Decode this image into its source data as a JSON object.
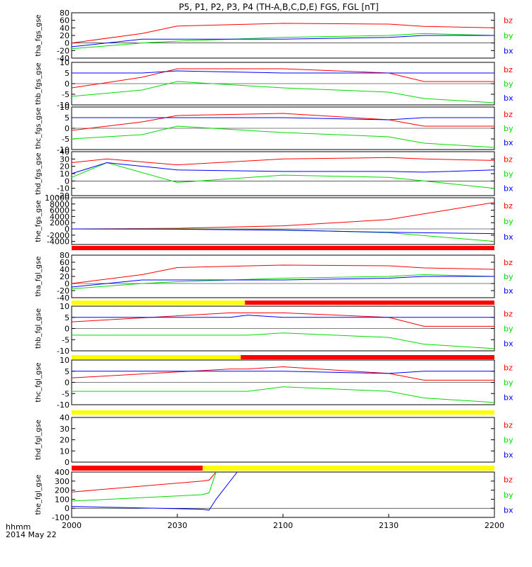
{
  "title": "P5, P1, P2, P3, P4 (TH-A,B,C,D,E) FGS, FGL [nT]",
  "footer": {
    "time_label": "hhmm",
    "date_label": "2014 May 22"
  },
  "x_ticks": [
    "2000",
    "2030",
    "2100",
    "2130",
    "2200"
  ],
  "colors": {
    "bx": "#0000ff",
    "by": "#00dd00",
    "bz": "#ff0000",
    "bar_red": "#ff0000",
    "bar_yellow": "#ffff00",
    "axis": "#000000"
  },
  "chart_data": [
    {
      "type": "line",
      "ylabel": "tha_fgs_gse",
      "ylim": [
        -40,
        80
      ],
      "yticks": [
        "-40",
        "-20",
        "0",
        "20",
        "40",
        "60",
        "80"
      ],
      "legend": [
        "bz",
        "by",
        "bx"
      ],
      "x": [
        "2000",
        "2020",
        "2030",
        "2100",
        "2130",
        "2140",
        "2200"
      ],
      "series": [
        {
          "name": "bz",
          "values": [
            0,
            25,
            45,
            52,
            50,
            44,
            40
          ]
        },
        {
          "name": "by",
          "values": [
            -15,
            0,
            5,
            15,
            20,
            25,
            20
          ]
        },
        {
          "name": "bx",
          "values": [
            -10,
            10,
            10,
            10,
            15,
            20,
            20
          ]
        }
      ]
    },
    {
      "type": "line",
      "ylabel": "thb_fgs_gse",
      "ylim": [
        -10,
        10
      ],
      "yticks": [
        "-10",
        "-5",
        "0",
        "5",
        "10"
      ],
      "legend": [
        "bz",
        "by",
        "bx"
      ],
      "x": [
        "2000",
        "2020",
        "2030",
        "2100",
        "2130",
        "2140",
        "2200"
      ],
      "series": [
        {
          "name": "bz",
          "values": [
            -2,
            3,
            7,
            7,
            5,
            1,
            1
          ]
        },
        {
          "name": "by",
          "values": [
            -6,
            -3,
            1,
            -2,
            -4,
            -7,
            -9
          ]
        },
        {
          "name": "bx",
          "values": [
            5,
            5,
            6,
            5,
            5,
            5,
            5
          ]
        }
      ]
    },
    {
      "type": "line",
      "ylabel": "thc_fgs_gse",
      "ylim": [
        -10,
        10
      ],
      "yticks": [
        "-10",
        "-5",
        "0",
        "5",
        "10"
      ],
      "legend": [
        "bz",
        "by",
        "bx"
      ],
      "x": [
        "2000",
        "2020",
        "2030",
        "2100",
        "2130",
        "2140",
        "2200"
      ],
      "series": [
        {
          "name": "bz",
          "values": [
            -1,
            3,
            6,
            7,
            4,
            1,
            1
          ]
        },
        {
          "name": "by",
          "values": [
            -5,
            -3,
            1,
            -2,
            -4,
            -7,
            -9
          ]
        },
        {
          "name": "bx",
          "values": [
            5,
            5,
            5,
            5,
            4,
            5,
            5
          ]
        }
      ]
    },
    {
      "type": "line",
      "ylabel": "thd_fgs_gse",
      "ylim": [
        -20,
        40
      ],
      "yticks": [
        "-20",
        "-10",
        "0",
        "10",
        "20",
        "30",
        "40"
      ],
      "legend": [
        "bz",
        "by",
        "bx"
      ],
      "x": [
        "2000",
        "2010",
        "2030",
        "2100",
        "2130",
        "2140",
        "2200"
      ],
      "series": [
        {
          "name": "bz",
          "values": [
            25,
            30,
            22,
            30,
            32,
            30,
            28
          ]
        },
        {
          "name": "by",
          "values": [
            5,
            25,
            -2,
            8,
            5,
            0,
            -10
          ]
        },
        {
          "name": "bx",
          "values": [
            10,
            25,
            15,
            13,
            13,
            12,
            15
          ]
        }
      ]
    },
    {
      "type": "line",
      "ylabel": "the_fgs_gse",
      "ylim": [
        -5000,
        10000
      ],
      "yticks": [
        "-4000",
        "-2000",
        "0",
        "2000",
        "4000",
        "6000",
        "8000",
        "10000"
      ],
      "legend": [
        "bz",
        "by",
        "bx"
      ],
      "x": [
        "2000",
        "2030",
        "2100",
        "2130",
        "2200"
      ],
      "series": [
        {
          "name": "bz",
          "values": [
            0,
            200,
            1000,
            3000,
            8500
          ]
        },
        {
          "name": "by",
          "values": [
            0,
            0,
            -300,
            -1200,
            -4000
          ]
        },
        {
          "name": "bx",
          "values": [
            0,
            -100,
            -400,
            -1100,
            -1500
          ]
        }
      ]
    },
    {
      "type": "line",
      "ylabel": "tha_fgl_gse",
      "ylim": [
        -40,
        80
      ],
      "yticks": [
        "-40",
        "-20",
        "0",
        "20",
        "40",
        "60",
        "80"
      ],
      "legend": [
        "bz",
        "by",
        "bx"
      ],
      "x": [
        "2000",
        "2020",
        "2030",
        "2100",
        "2130",
        "2140",
        "2200"
      ],
      "series": [
        {
          "name": "bz",
          "values": [
            0,
            25,
            45,
            52,
            50,
            44,
            40
          ]
        },
        {
          "name": "by",
          "values": [
            -15,
            0,
            5,
            15,
            20,
            25,
            20
          ]
        },
        {
          "name": "bx",
          "values": [
            -10,
            10,
            10,
            10,
            15,
            20,
            20
          ]
        }
      ]
    },
    {
      "type": "line",
      "ylabel": "thb_fgl_gse",
      "ylim": [
        -10,
        10
      ],
      "yticks": [
        "-10",
        "-5",
        "0",
        "5",
        "10"
      ],
      "legend": [
        "bz",
        "by",
        "bx"
      ],
      "x": [
        "2000",
        "2045",
        "2050",
        "2100",
        "2130",
        "2140",
        "2200"
      ],
      "series": [
        {
          "name": "bz",
          "values": [
            3,
            7,
            7,
            7,
            5,
            1,
            1
          ]
        },
        {
          "name": "by",
          "values": [
            -3,
            -3,
            -3,
            -2,
            -4,
            -7,
            -9
          ]
        },
        {
          "name": "bx",
          "values": [
            5,
            5,
            6,
            5,
            5,
            5,
            5
          ]
        }
      ]
    },
    {
      "type": "line",
      "ylabel": "thc_fgl_gse",
      "ylim": [
        -10,
        10
      ],
      "yticks": [
        "-10",
        "-5",
        "0",
        "5",
        "10"
      ],
      "legend": [
        "bz",
        "by",
        "bx"
      ],
      "x": [
        "2000",
        "2045",
        "2050",
        "2100",
        "2130",
        "2140",
        "2200"
      ],
      "series": [
        {
          "name": "bz",
          "values": [
            2,
            6,
            6,
            7,
            4,
            1,
            1
          ]
        },
        {
          "name": "by",
          "values": [
            -4,
            -4,
            -4,
            -2,
            -4,
            -7,
            -9
          ]
        },
        {
          "name": "bx",
          "values": [
            5,
            5,
            5,
            5,
            4,
            5,
            5
          ]
        }
      ]
    },
    {
      "type": "line",
      "ylabel": "thd_fgl_gse",
      "ylim": [
        0,
        40
      ],
      "yticks": [
        "0",
        "10",
        "20",
        "30",
        "40"
      ],
      "legend": [
        "bz",
        "by",
        "bx"
      ],
      "x": [],
      "series": []
    },
    {
      "type": "line",
      "ylabel": "the_fgl_gse",
      "ylim": [
        -100,
        400
      ],
      "yticks": [
        "-100",
        "0",
        "100",
        "200",
        "300",
        "400"
      ],
      "legend": [
        "bz",
        "by",
        "bx"
      ],
      "x": [
        "2000",
        "2037",
        "2039",
        "2041",
        "2047"
      ],
      "series": [
        {
          "name": "bz",
          "values": [
            180,
            300,
            310,
            400,
            null
          ]
        },
        {
          "name": "by",
          "values": [
            80,
            150,
            170,
            400,
            null
          ]
        },
        {
          "name": "bx",
          "values": [
            20,
            -10,
            -20,
            100,
            400
          ]
        }
      ]
    }
  ]
}
